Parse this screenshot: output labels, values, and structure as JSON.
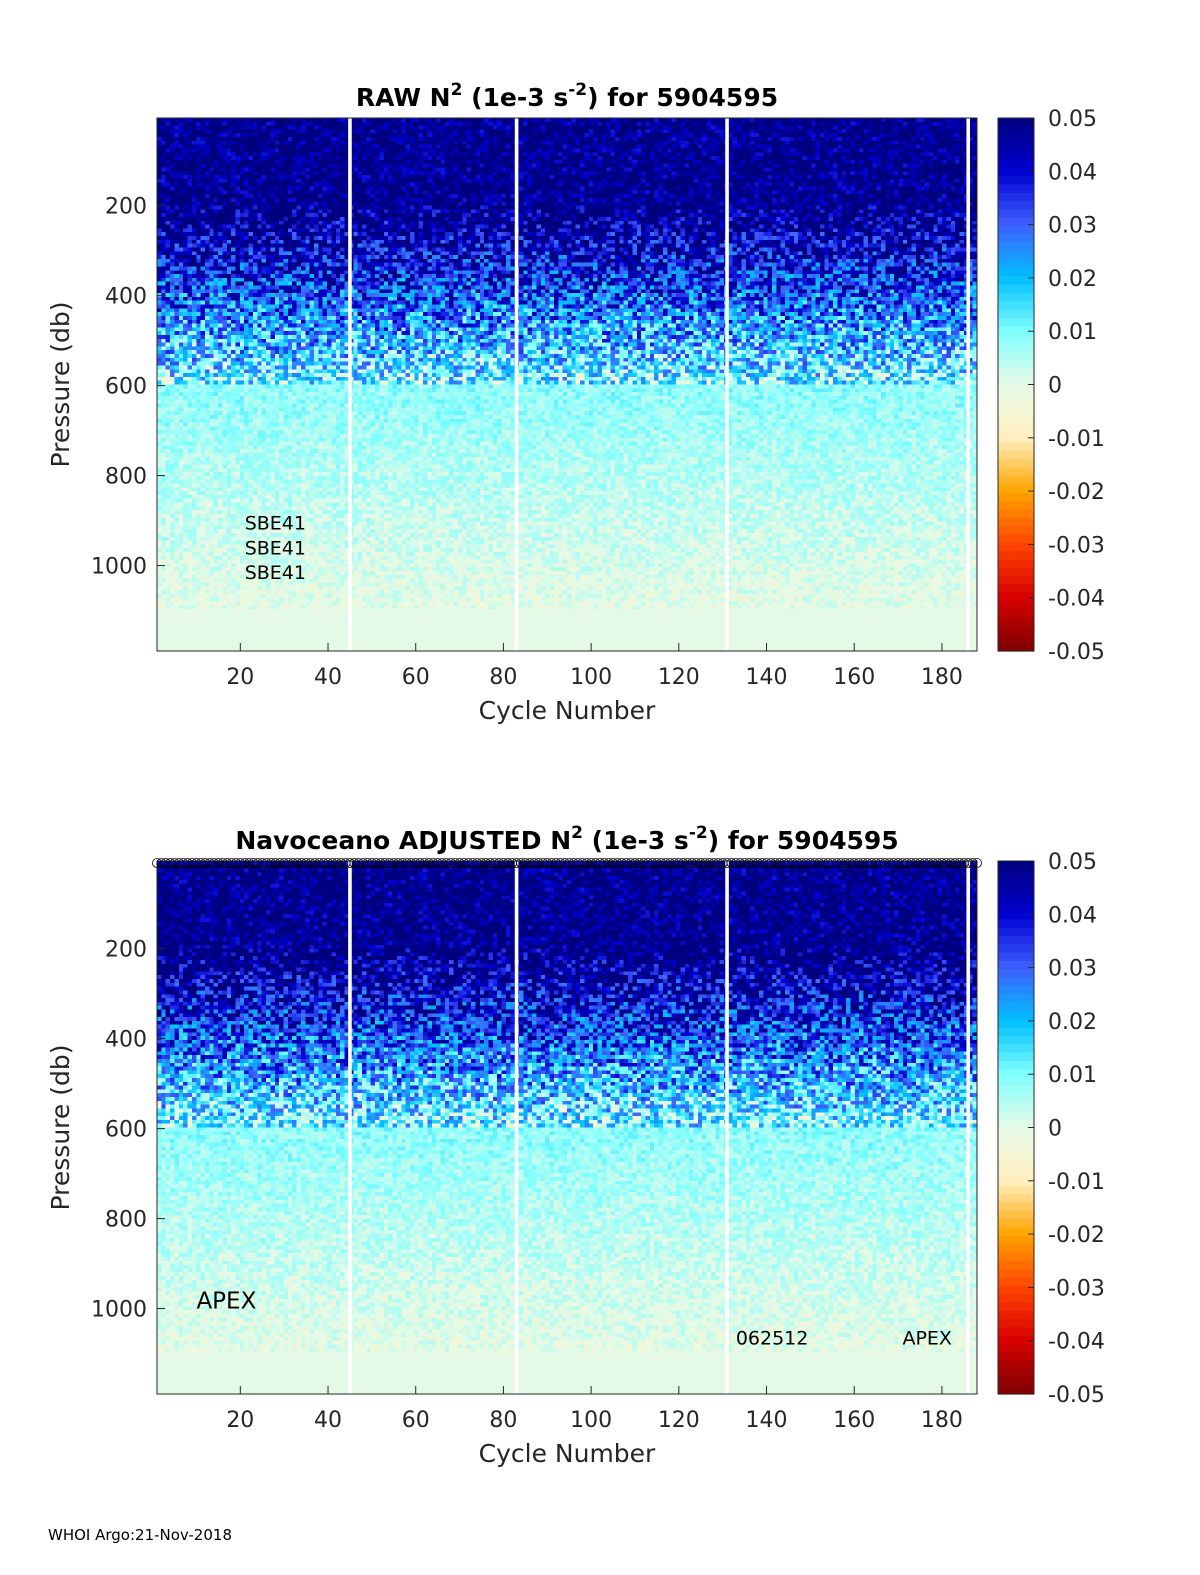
{
  "footer": "WHOI Argo:21-Nov-2018",
  "colors": {
    "cmap": [
      "#7f0000",
      "#d70000",
      "#ff4500",
      "#ffa500",
      "#fff0c0",
      "#e6fae6",
      "#7fffff",
      "#00bfff",
      "#3f5fff",
      "#0000d0",
      "#00007f"
    ],
    "ocean_fill": "#e3f9e6",
    "dark_fill": "#06107a"
  },
  "chart_data": [
    {
      "type": "heatmap",
      "title_main": "RAW N",
      "title_sup": "2",
      "title_units_a": " (1e-3 s",
      "title_units_sup": "-2",
      "title_units_b": ") for 5904595",
      "xlabel": "Cycle Number",
      "ylabel": "Pressure (db)",
      "xlim": [
        1,
        188
      ],
      "ylim": [
        1190,
        5
      ],
      "xticks": [
        20,
        40,
        60,
        80,
        100,
        120,
        140,
        160,
        180
      ],
      "xtick_labels": [
        "20",
        "40",
        "60",
        "80",
        "100",
        "120",
        "140",
        "160",
        "180"
      ],
      "yticks": [
        200,
        400,
        600,
        800,
        1000
      ],
      "ytick_labels": [
        "200",
        "400",
        "600",
        "800",
        "1000"
      ],
      "clim": [
        -0.05,
        0.05
      ],
      "colorbar_ticks": [
        0.05,
        0.04,
        0.03,
        0.02,
        0.01,
        0,
        -0.01,
        -0.02,
        -0.03,
        -0.04,
        -0.05
      ],
      "colorbar_labels": [
        "0.05",
        "0.04",
        "0.03",
        "0.02",
        "0.01",
        "0",
        "-0.01",
        "-0.02",
        "-0.03",
        "-0.04",
        "-0.05"
      ],
      "gaps": [
        45,
        83,
        131,
        186
      ],
      "annotations": [
        {
          "text": "SBE41",
          "x": 21,
          "y": 920
        },
        {
          "text": "SBE41",
          "x": 21,
          "y": 975
        },
        {
          "text": "SBE41",
          "x": 21,
          "y": 1030
        }
      ],
      "qc_markers": false
    },
    {
      "type": "heatmap",
      "title_main": "Navoceano  ADJUSTED N",
      "title_sup": "2",
      "title_units_a": " (1e-3 s",
      "title_units_sup": "-2",
      "title_units_b": ") for 5904595",
      "xlabel": "Cycle Number",
      "ylabel": "Pressure (db)",
      "xlim": [
        1,
        188
      ],
      "ylim": [
        1190,
        5
      ],
      "xticks": [
        20,
        40,
        60,
        80,
        100,
        120,
        140,
        160,
        180
      ],
      "xtick_labels": [
        "20",
        "40",
        "60",
        "80",
        "100",
        "120",
        "140",
        "160",
        "180"
      ],
      "yticks": [
        200,
        400,
        600,
        800,
        1000
      ],
      "ytick_labels": [
        "200",
        "400",
        "600",
        "800",
        "1000"
      ],
      "clim": [
        -0.05,
        0.05
      ],
      "colorbar_ticks": [
        0.05,
        0.04,
        0.03,
        0.02,
        0.01,
        0,
        -0.01,
        -0.02,
        -0.03,
        -0.04,
        -0.05
      ],
      "colorbar_labels": [
        "0.05",
        "0.04",
        "0.03",
        "0.02",
        "0.01",
        "0",
        "-0.01",
        "-0.02",
        "-0.03",
        "-0.04",
        "-0.05"
      ],
      "gaps": [
        45,
        83,
        131,
        186
      ],
      "annotations": [
        {
          "text": "APEX",
          "x": 10,
          "y": 1000,
          "big": true
        },
        {
          "text": "062512",
          "x": 133,
          "y": 1080
        },
        {
          "text": "APEX",
          "x": 171,
          "y": 1080
        }
      ],
      "qc_markers": true
    }
  ]
}
